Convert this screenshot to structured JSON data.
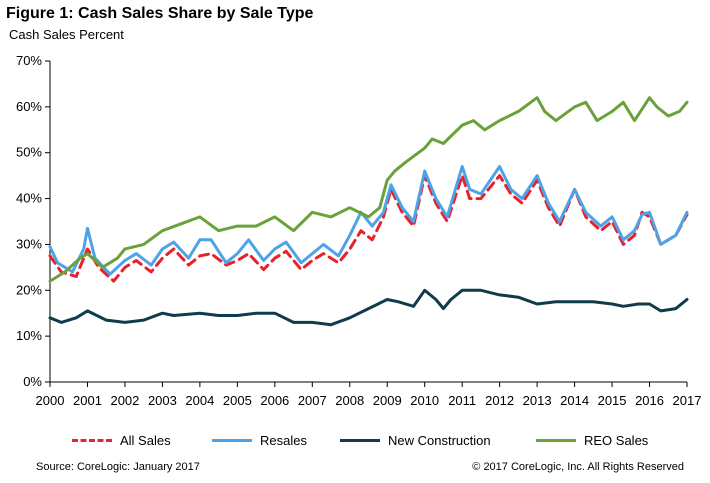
{
  "title": "Figure 1: Cash Sales Share by Sale Type",
  "subtitle": "Cash Sales Percent",
  "source": "Source: CoreLogic: January 2017",
  "copyright": "© 2017 CoreLogic, Inc. All Rights Reserved",
  "chart_data": {
    "type": "line",
    "title": "Figure 1: Cash Sales Share by Sale Type",
    "subtitle": "Cash Sales Percent",
    "xlabel": "",
    "ylabel": "",
    "xlim": [
      2000,
      2017
    ],
    "ylim": [
      0,
      70
    ],
    "x_ticks": [
      "2000",
      "2001",
      "2002",
      "2003",
      "2004",
      "2005",
      "2006",
      "2007",
      "2008",
      "2009",
      "2010",
      "2011",
      "2012",
      "2013",
      "2014",
      "2015",
      "2016",
      "2017"
    ],
    "y_ticks": [
      "0%",
      "10%",
      "20%",
      "30%",
      "40%",
      "50%",
      "60%",
      "70%"
    ],
    "grid": false,
    "legend_position": "bottom",
    "series": [
      {
        "name": "All Sales",
        "color": "#e8212b",
        "style": "dashed",
        "points": [
          [
            2000,
            27.5
          ],
          [
            2000.3,
            24
          ],
          [
            2000.7,
            23
          ],
          [
            2001,
            29
          ],
          [
            2001.3,
            25
          ],
          [
            2001.7,
            22
          ],
          [
            2002,
            25
          ],
          [
            2002.3,
            26.5
          ],
          [
            2002.7,
            24
          ],
          [
            2003,
            27
          ],
          [
            2003.3,
            29
          ],
          [
            2003.7,
            25.5
          ],
          [
            2004,
            27.5
          ],
          [
            2004.3,
            28
          ],
          [
            2004.7,
            25.5
          ],
          [
            2005,
            26.5
          ],
          [
            2005.3,
            28
          ],
          [
            2005.7,
            24.5
          ],
          [
            2006,
            27
          ],
          [
            2006.3,
            28.5
          ],
          [
            2006.7,
            24.5
          ],
          [
            2007,
            26.5
          ],
          [
            2007.3,
            28
          ],
          [
            2007.7,
            26
          ],
          [
            2008,
            29
          ],
          [
            2008.3,
            33
          ],
          [
            2008.6,
            31
          ],
          [
            2008.9,
            36
          ],
          [
            2009.1,
            42
          ],
          [
            2009.4,
            37
          ],
          [
            2009.7,
            34
          ],
          [
            2010,
            45
          ],
          [
            2010.3,
            39
          ],
          [
            2010.6,
            35
          ],
          [
            2011,
            45
          ],
          [
            2011.2,
            40
          ],
          [
            2011.5,
            40
          ],
          [
            2012,
            45
          ],
          [
            2012.3,
            41
          ],
          [
            2012.6,
            39
          ],
          [
            2013,
            44
          ],
          [
            2013.3,
            38
          ],
          [
            2013.6,
            34
          ],
          [
            2014,
            42
          ],
          [
            2014.3,
            36
          ],
          [
            2014.7,
            33
          ],
          [
            2015,
            35
          ],
          [
            2015.3,
            30
          ],
          [
            2015.6,
            32
          ],
          [
            2015.8,
            37
          ],
          [
            2016,
            36
          ],
          [
            2016.3,
            30
          ],
          [
            2016.7,
            32
          ],
          [
            2017,
            36.5
          ]
        ]
      },
      {
        "name": "Resales",
        "color": "#4da3e8",
        "style": "solid",
        "points": [
          [
            2000,
            29.5
          ],
          [
            2000.2,
            26
          ],
          [
            2000.6,
            24
          ],
          [
            2000.9,
            29
          ],
          [
            2001,
            33.5
          ],
          [
            2001.2,
            27
          ],
          [
            2001.6,
            23.5
          ],
          [
            2002,
            26.5
          ],
          [
            2002.3,
            28
          ],
          [
            2002.7,
            25.5
          ],
          [
            2003,
            29
          ],
          [
            2003.3,
            30.5
          ],
          [
            2003.7,
            27
          ],
          [
            2004,
            31
          ],
          [
            2004.3,
            31
          ],
          [
            2004.7,
            26
          ],
          [
            2005,
            28
          ],
          [
            2005.3,
            31
          ],
          [
            2005.7,
            26.5
          ],
          [
            2006,
            29
          ],
          [
            2006.3,
            30.5
          ],
          [
            2006.7,
            26
          ],
          [
            2007,
            28
          ],
          [
            2007.3,
            30
          ],
          [
            2007.7,
            27.5
          ],
          [
            2008,
            32
          ],
          [
            2008.3,
            37
          ],
          [
            2008.6,
            34
          ],
          [
            2008.9,
            37
          ],
          [
            2009.1,
            43
          ],
          [
            2009.4,
            38
          ],
          [
            2009.7,
            35
          ],
          [
            2010,
            46
          ],
          [
            2010.3,
            40
          ],
          [
            2010.6,
            36
          ],
          [
            2011,
            47
          ],
          [
            2011.2,
            42
          ],
          [
            2011.5,
            41
          ],
          [
            2012,
            47
          ],
          [
            2012.3,
            42
          ],
          [
            2012.6,
            40
          ],
          [
            2013,
            45
          ],
          [
            2013.3,
            39
          ],
          [
            2013.6,
            35
          ],
          [
            2014,
            42
          ],
          [
            2014.3,
            37
          ],
          [
            2014.7,
            34
          ],
          [
            2015,
            36
          ],
          [
            2015.3,
            31
          ],
          [
            2015.6,
            33
          ],
          [
            2015.8,
            36.5
          ],
          [
            2016,
            37
          ],
          [
            2016.3,
            30
          ],
          [
            2016.7,
            32
          ],
          [
            2017,
            37
          ]
        ]
      },
      {
        "name": "New Construction",
        "color": "#0f3b4a",
        "style": "solid",
        "points": [
          [
            2000,
            14
          ],
          [
            2000.3,
            13
          ],
          [
            2000.7,
            14
          ],
          [
            2001,
            15.5
          ],
          [
            2001.5,
            13.5
          ],
          [
            2002,
            13
          ],
          [
            2002.5,
            13.5
          ],
          [
            2003,
            15
          ],
          [
            2003.3,
            14.5
          ],
          [
            2004,
            15
          ],
          [
            2004.5,
            14.5
          ],
          [
            2005,
            14.5
          ],
          [
            2005.5,
            15
          ],
          [
            2006,
            15
          ],
          [
            2006.5,
            13
          ],
          [
            2007,
            13
          ],
          [
            2007.5,
            12.5
          ],
          [
            2008,
            14
          ],
          [
            2008.5,
            16
          ],
          [
            2009,
            18
          ],
          [
            2009.3,
            17.5
          ],
          [
            2009.7,
            16.5
          ],
          [
            2010,
            20
          ],
          [
            2010.3,
            18
          ],
          [
            2010.5,
            16
          ],
          [
            2010.7,
            18
          ],
          [
            2011,
            20
          ],
          [
            2011.5,
            20
          ],
          [
            2012,
            19
          ],
          [
            2012.5,
            18.5
          ],
          [
            2013,
            17
          ],
          [
            2013.5,
            17.5
          ],
          [
            2014,
            17.5
          ],
          [
            2014.5,
            17.5
          ],
          [
            2015,
            17
          ],
          [
            2015.3,
            16.5
          ],
          [
            2015.7,
            17
          ],
          [
            2016,
            17
          ],
          [
            2016.3,
            15.5
          ],
          [
            2016.7,
            16
          ],
          [
            2017,
            18
          ]
        ]
      },
      {
        "name": "REO Sales",
        "color": "#6aa23a",
        "style": "solid",
        "points": [
          [
            2000,
            22
          ],
          [
            2000.4,
            24
          ],
          [
            2000.8,
            27
          ],
          [
            2001,
            28
          ],
          [
            2001.4,
            25
          ],
          [
            2001.8,
            27
          ],
          [
            2002,
            29
          ],
          [
            2002.5,
            30
          ],
          [
            2003,
            33
          ],
          [
            2003.5,
            34.5
          ],
          [
            2004,
            36
          ],
          [
            2004.5,
            33
          ],
          [
            2005,
            34
          ],
          [
            2005.5,
            34
          ],
          [
            2006,
            36
          ],
          [
            2006.5,
            33
          ],
          [
            2007,
            37
          ],
          [
            2007.5,
            36
          ],
          [
            2008,
            38
          ],
          [
            2008.5,
            36
          ],
          [
            2008.8,
            38
          ],
          [
            2009,
            44
          ],
          [
            2009.2,
            46
          ],
          [
            2009.5,
            48
          ],
          [
            2010,
            51
          ],
          [
            2010.2,
            53
          ],
          [
            2010.5,
            52
          ],
          [
            2011,
            56
          ],
          [
            2011.3,
            57
          ],
          [
            2011.6,
            55
          ],
          [
            2012,
            57
          ],
          [
            2012.5,
            59
          ],
          [
            2013,
            62
          ],
          [
            2013.2,
            59
          ],
          [
            2013.5,
            57
          ],
          [
            2014,
            60
          ],
          [
            2014.3,
            61
          ],
          [
            2014.6,
            57
          ],
          [
            2015,
            59
          ],
          [
            2015.3,
            61
          ],
          [
            2015.6,
            57
          ],
          [
            2016,
            62
          ],
          [
            2016.2,
            60
          ],
          [
            2016.5,
            58
          ],
          [
            2016.8,
            59
          ],
          [
            2017,
            61
          ]
        ]
      }
    ]
  }
}
